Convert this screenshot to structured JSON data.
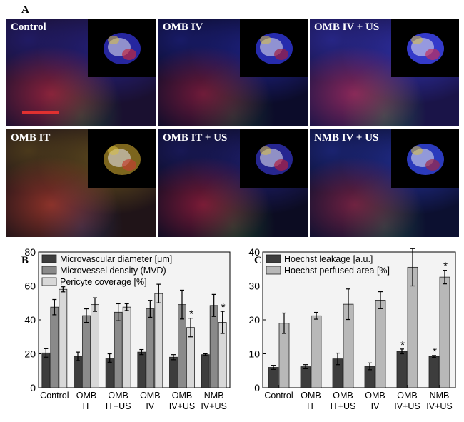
{
  "figure": {
    "panel_a_letter": "A",
    "panel_b_letter": "B",
    "panel_c_letter": "C"
  },
  "micrographs": [
    {
      "label": "Control",
      "base": "#1a1030",
      "tint1": "#c02a40",
      "tint2": "#2a2ab0",
      "tint3": "#30a040"
    },
    {
      "label": "OMB IV",
      "base": "#0c0c2a",
      "tint1": "#a02040",
      "tint2": "#2a30c0",
      "tint3": "#308040"
    },
    {
      "label": "OMB IV + US",
      "base": "#1a1448",
      "tint1": "#c03060",
      "tint2": "#3a40e0",
      "tint3": "#40c050"
    },
    {
      "label": "OMB IT",
      "base": "#201418",
      "tint1": "#c04030",
      "tint2": "#8a7020",
      "tint3": "#3050a0"
    },
    {
      "label": "OMB IT + US",
      "base": "#0c0c22",
      "tint1": "#b02040",
      "tint2": "#2a2aa0",
      "tint3": "#30a040"
    },
    {
      "label": "NMB IV + US",
      "base": "#0c1030",
      "tint1": "#a02848",
      "tint2": "#3040d0",
      "tint3": "#40a060"
    }
  ],
  "chart_data": [
    {
      "type": "bar",
      "categories": [
        "Control",
        "OMB\nIT",
        "OMB\nIT+US",
        "OMB\nIV",
        "OMB\nIV+US",
        "NMB\nIV+US"
      ],
      "ylim": [
        0,
        80
      ],
      "yticks": [
        0,
        20,
        40,
        60,
        80
      ],
      "series": [
        {
          "name": "Microvascular diameter [μm]",
          "color": "#3d3d3d",
          "values": [
            20.5,
            18.5,
            17.5,
            21,
            18,
            19.5
          ],
          "errors": [
            2.5,
            2.5,
            2.5,
            1.5,
            1.5,
            0.5
          ]
        },
        {
          "name": "Microvessel density (MVD)",
          "color": "#8a8a8a",
          "values": [
            47.5,
            42.5,
            44.5,
            46.5,
            49,
            48.5
          ],
          "errors": [
            4.5,
            4,
            5,
            5,
            8.5,
            6.5
          ]
        },
        {
          "name": "Pericyte coverage [%]",
          "color": "#d8d8d8",
          "values": [
            58,
            49,
            47.5,
            55.5,
            35.5,
            38.5
          ],
          "errors": [
            1.5,
            4,
            2,
            5.5,
            5.5,
            6.5
          ]
        }
      ],
      "annotations": [
        {
          "category": 4,
          "series": 2,
          "text": "*"
        },
        {
          "category": 5,
          "series": 2,
          "text": "*"
        }
      ]
    },
    {
      "type": "bar",
      "categories": [
        "Control",
        "OMB\nIT",
        "OMB\nIT+US",
        "OMB\nIV",
        "OMB\nIV+US",
        "NMB\nIV+US"
      ],
      "ylim": [
        0,
        40
      ],
      "yticks": [
        0,
        10,
        20,
        30,
        40
      ],
      "series": [
        {
          "name": "Hoechst leakage [a.u.]",
          "color": "#3d3d3d",
          "values": [
            6,
            6.2,
            8.5,
            6.3,
            10.7,
            9.2
          ],
          "errors": [
            0.6,
            0.6,
            1.7,
            1,
            0.7,
            0.3
          ]
        },
        {
          "name": "Hoechst perfused area [%]",
          "color": "#b8b8b8",
          "values": [
            19,
            21.2,
            24.6,
            25.8,
            35.5,
            32.6
          ],
          "errors": [
            3,
            1,
            4.5,
            2.5,
            5.5,
            2
          ]
        }
      ],
      "annotations": [
        {
          "category": 4,
          "series": 0,
          "text": "*"
        },
        {
          "category": 5,
          "series": 0,
          "text": "*"
        },
        {
          "category": 4,
          "series": 1,
          "text": "*"
        },
        {
          "category": 5,
          "series": 1,
          "text": "*"
        }
      ]
    }
  ]
}
